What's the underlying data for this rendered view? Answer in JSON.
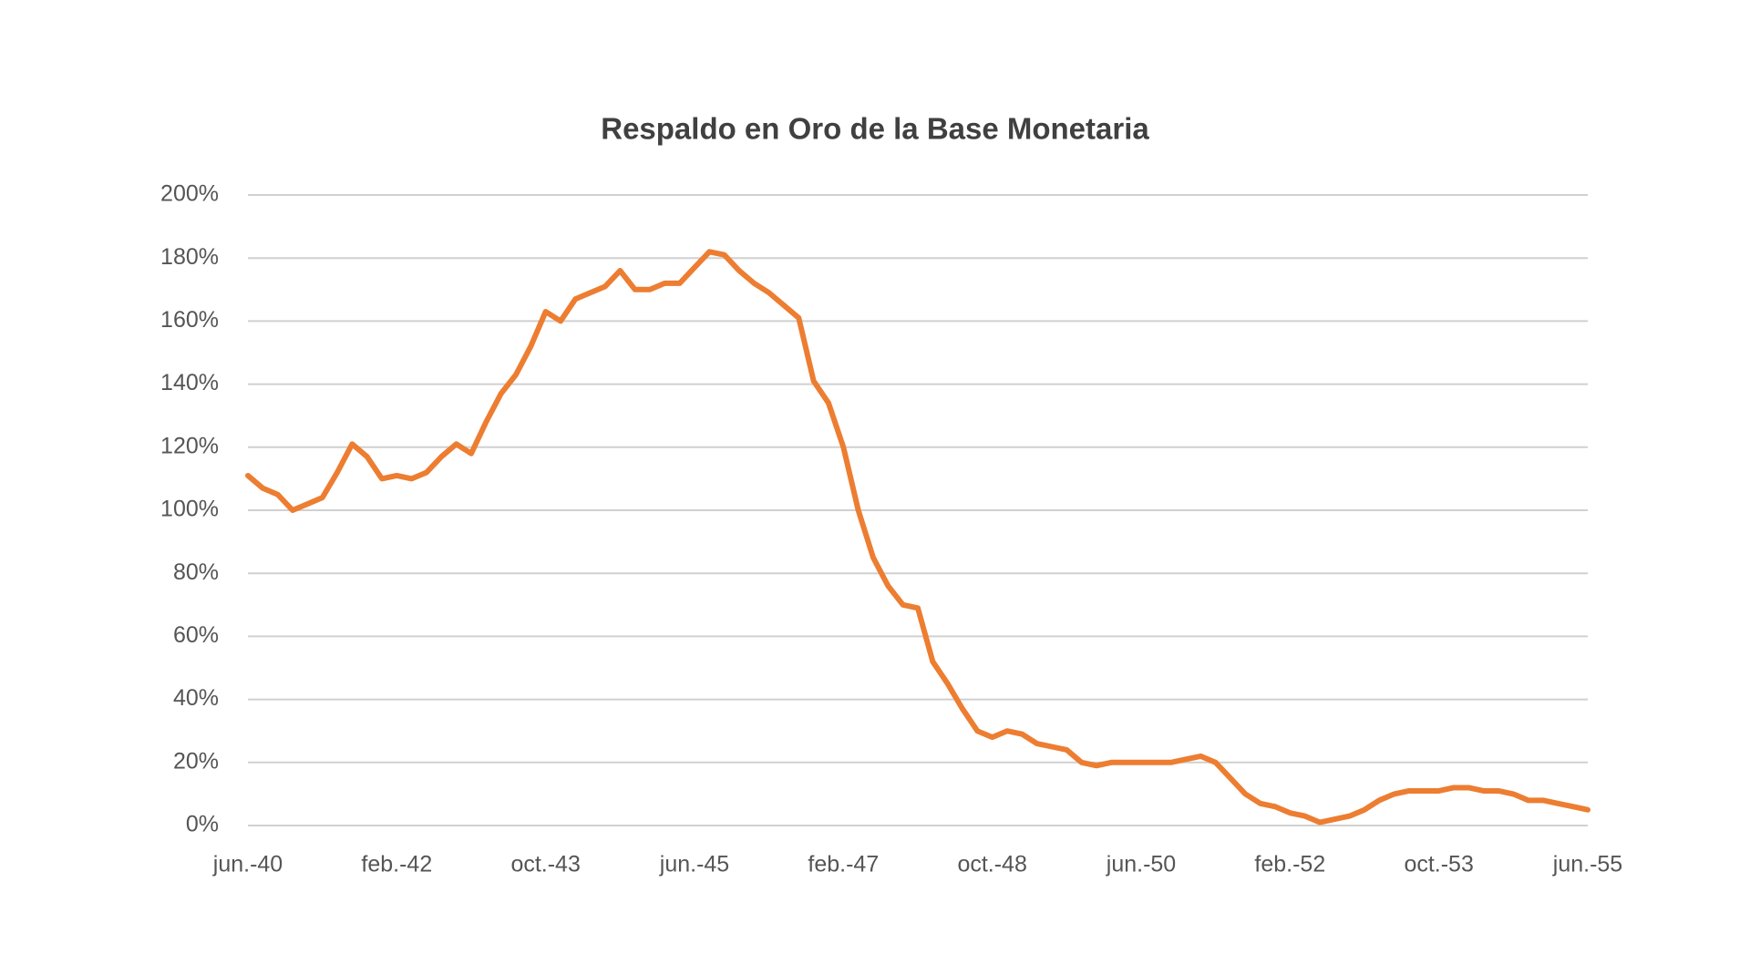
{
  "chart_data": {
    "type": "line",
    "title": "Respaldo en Oro de la Base Monetaria",
    "categories": [
      "jun.-40",
      null,
      null,
      null,
      null,
      null,
      null,
      null,
      null,
      null,
      "feb.-42",
      null,
      null,
      null,
      null,
      null,
      null,
      null,
      null,
      null,
      "oct.-43",
      null,
      null,
      null,
      null,
      null,
      null,
      null,
      null,
      null,
      "jun.-45",
      null,
      null,
      null,
      null,
      null,
      null,
      null,
      null,
      null,
      "feb.-47",
      null,
      null,
      null,
      null,
      null,
      null,
      null,
      null,
      null,
      "oct.-48",
      null,
      null,
      null,
      null,
      null,
      null,
      null,
      null,
      null,
      "jun.-50",
      null,
      null,
      null,
      null,
      null,
      null,
      null,
      null,
      null,
      "feb.-52",
      null,
      null,
      null,
      null,
      null,
      null,
      null,
      null,
      null,
      "oct.-53",
      null,
      null,
      null,
      null,
      null,
      null,
      null,
      null,
      null,
      "jun.-55"
    ],
    "values": [
      111,
      107,
      105,
      100,
      102,
      104,
      112,
      121,
      117,
      110,
      111,
      110,
      112,
      117,
      121,
      118,
      128,
      137,
      143,
      152,
      163,
      160,
      167,
      169,
      171,
      176,
      170,
      170,
      172,
      172,
      177,
      182,
      181,
      176,
      172,
      169,
      165,
      161,
      141,
      134,
      120,
      100,
      85,
      76,
      70,
      69,
      52,
      45,
      37,
      30,
      28,
      30,
      29,
      26,
      25,
      24,
      20,
      19,
      20,
      20,
      20,
      20,
      20,
      21,
      22,
      20,
      15,
      10,
      7,
      6,
      4,
      3,
      1,
      2,
      3,
      5,
      8,
      10,
      11,
      11,
      11,
      12,
      12,
      11,
      11,
      10,
      8,
      8,
      7,
      6,
      5
    ],
    "color": "#ed7d31",
    "ylim": [
      0,
      200
    ],
    "yticks": [
      {
        "value": 0,
        "label": "0%"
      },
      {
        "value": 20,
        "label": "20%"
      },
      {
        "value": 40,
        "label": "40%"
      },
      {
        "value": 60,
        "label": "60%"
      },
      {
        "value": 80,
        "label": "80%"
      },
      {
        "value": 100,
        "label": "100%"
      },
      {
        "value": 120,
        "label": "120%"
      },
      {
        "value": 140,
        "label": "140%"
      },
      {
        "value": 160,
        "label": "160%"
      },
      {
        "value": 180,
        "label": "180%"
      },
      {
        "value": 200,
        "label": "200%"
      }
    ],
    "grid": true
  }
}
